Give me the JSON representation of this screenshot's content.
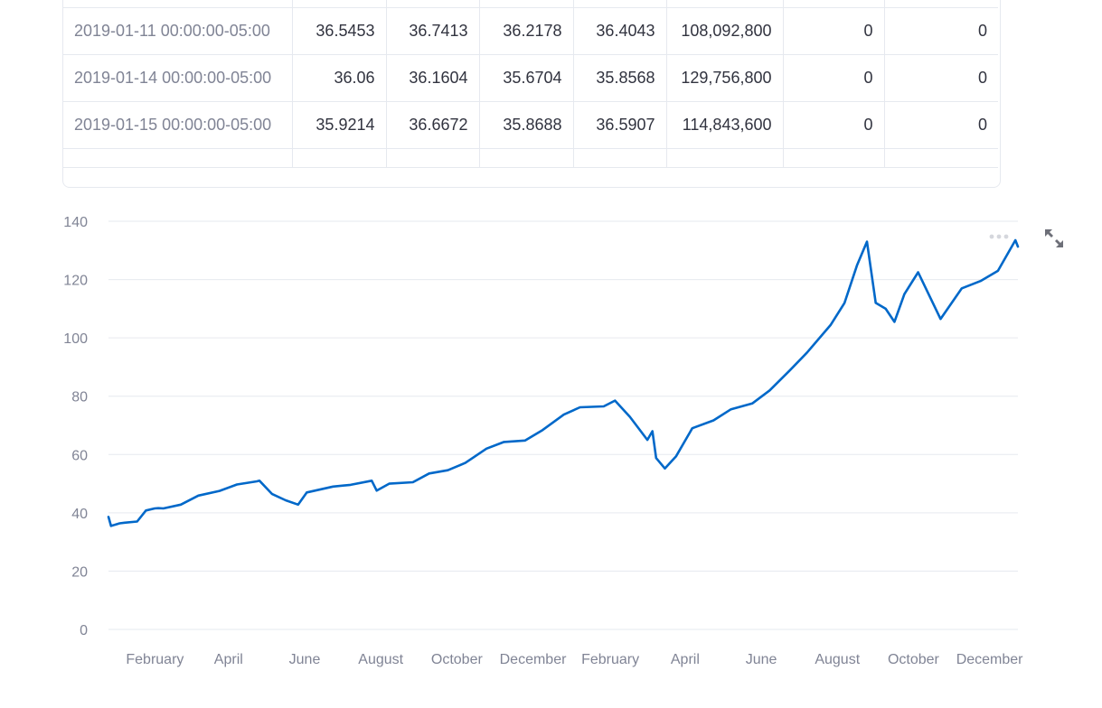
{
  "table": {
    "rows": [
      {
        "date": "2019-01-11 00:00:00-05:00",
        "open": "36.5453",
        "high": "36.7413",
        "low": "36.2178",
        "close": "36.4043",
        "volume": "108,092,800",
        "dividends": "0",
        "splits": "0"
      },
      {
        "date": "2019-01-14 00:00:00-05:00",
        "open": "36.06",
        "high": "36.1604",
        "low": "35.6704",
        "close": "35.8568",
        "volume": "129,756,800",
        "dividends": "0",
        "splits": "0"
      },
      {
        "date": "2019-01-15 00:00:00-05:00",
        "open": "35.9214",
        "high": "36.6672",
        "low": "35.8688",
        "close": "36.5907",
        "volume": "114,843,600",
        "dividends": "0",
        "splits": "0"
      }
    ]
  },
  "chart_data": {
    "type": "line",
    "title": "",
    "xlabel": "",
    "ylabel": "",
    "ylim": [
      0,
      140
    ],
    "yticks": [
      "0",
      "20",
      "40",
      "60",
      "80",
      "100",
      "120",
      "140"
    ],
    "xticks": [
      "February",
      "April",
      "June",
      "August",
      "October",
      "December",
      "February",
      "April",
      "June",
      "August",
      "October",
      "December"
    ],
    "grid": true,
    "line_color": "#0068c9",
    "x_range": [
      "2019-01-02",
      "2020-12-31"
    ],
    "series": [
      {
        "x": [
          "2019-01-02",
          "2019-01-04",
          "2019-01-11",
          "2019-01-15",
          "2019-01-25",
          "2019-02-01",
          "2019-02-08",
          "2019-02-11",
          "2019-02-15",
          "2019-03-01",
          "2019-03-15",
          "2019-04-01",
          "2019-04-15",
          "2019-05-01",
          "2019-05-03",
          "2019-05-13",
          "2019-05-24",
          "2019-06-03",
          "2019-06-10",
          "2019-07-01",
          "2019-07-15",
          "2019-08-01",
          "2019-08-05",
          "2019-08-15",
          "2019-09-03",
          "2019-09-16",
          "2019-10-01",
          "2019-10-15",
          "2019-11-01",
          "2019-11-15",
          "2019-12-02",
          "2019-12-16",
          "2020-01-02",
          "2020-01-15",
          "2020-02-03",
          "2020-02-12",
          "2020-02-24",
          "2020-03-09",
          "2020-03-13",
          "2020-03-16",
          "2020-03-23",
          "2020-04-01",
          "2020-04-14",
          "2020-05-01",
          "2020-05-15",
          "2020-06-01",
          "2020-06-15",
          "2020-07-01",
          "2020-07-15",
          "2020-08-03",
          "2020-08-14",
          "2020-08-24",
          "2020-09-01",
          "2020-09-08",
          "2020-09-16",
          "2020-09-23",
          "2020-10-01",
          "2020-10-12",
          "2020-10-30",
          "2020-11-16",
          "2020-12-01",
          "2020-12-15",
          "2020-12-29",
          "2020-12-31"
        ],
        "y": [
          38.6,
          35.5,
          36.4,
          36.6,
          37.0,
          40.8,
          41.5,
          41.6,
          41.5,
          42.8,
          45.9,
          47.5,
          49.7,
          50.8,
          51.0,
          46.5,
          44.3,
          42.8,
          47.0,
          49.0,
          49.6,
          51.0,
          47.6,
          50.0,
          50.5,
          53.5,
          54.6,
          57.1,
          62.0,
          64.3,
          64.8,
          68.4,
          73.7,
          76.2,
          76.5,
          78.5,
          72.9,
          65.0,
          68.0,
          58.8,
          55.2,
          59.4,
          69.0,
          71.7,
          75.5,
          77.5,
          82.0,
          88.8,
          95.0,
          104.5,
          112.0,
          124.9,
          133.0,
          112.0,
          110.0,
          105.5,
          115.0,
          122.5,
          106.5,
          117.0,
          119.5,
          123.0,
          133.5,
          131.3
        ]
      }
    ]
  },
  "toolbar": {
    "more_icon": "more-horizontal-icon",
    "fullscreen_icon": "fullscreen-expand-icon"
  }
}
